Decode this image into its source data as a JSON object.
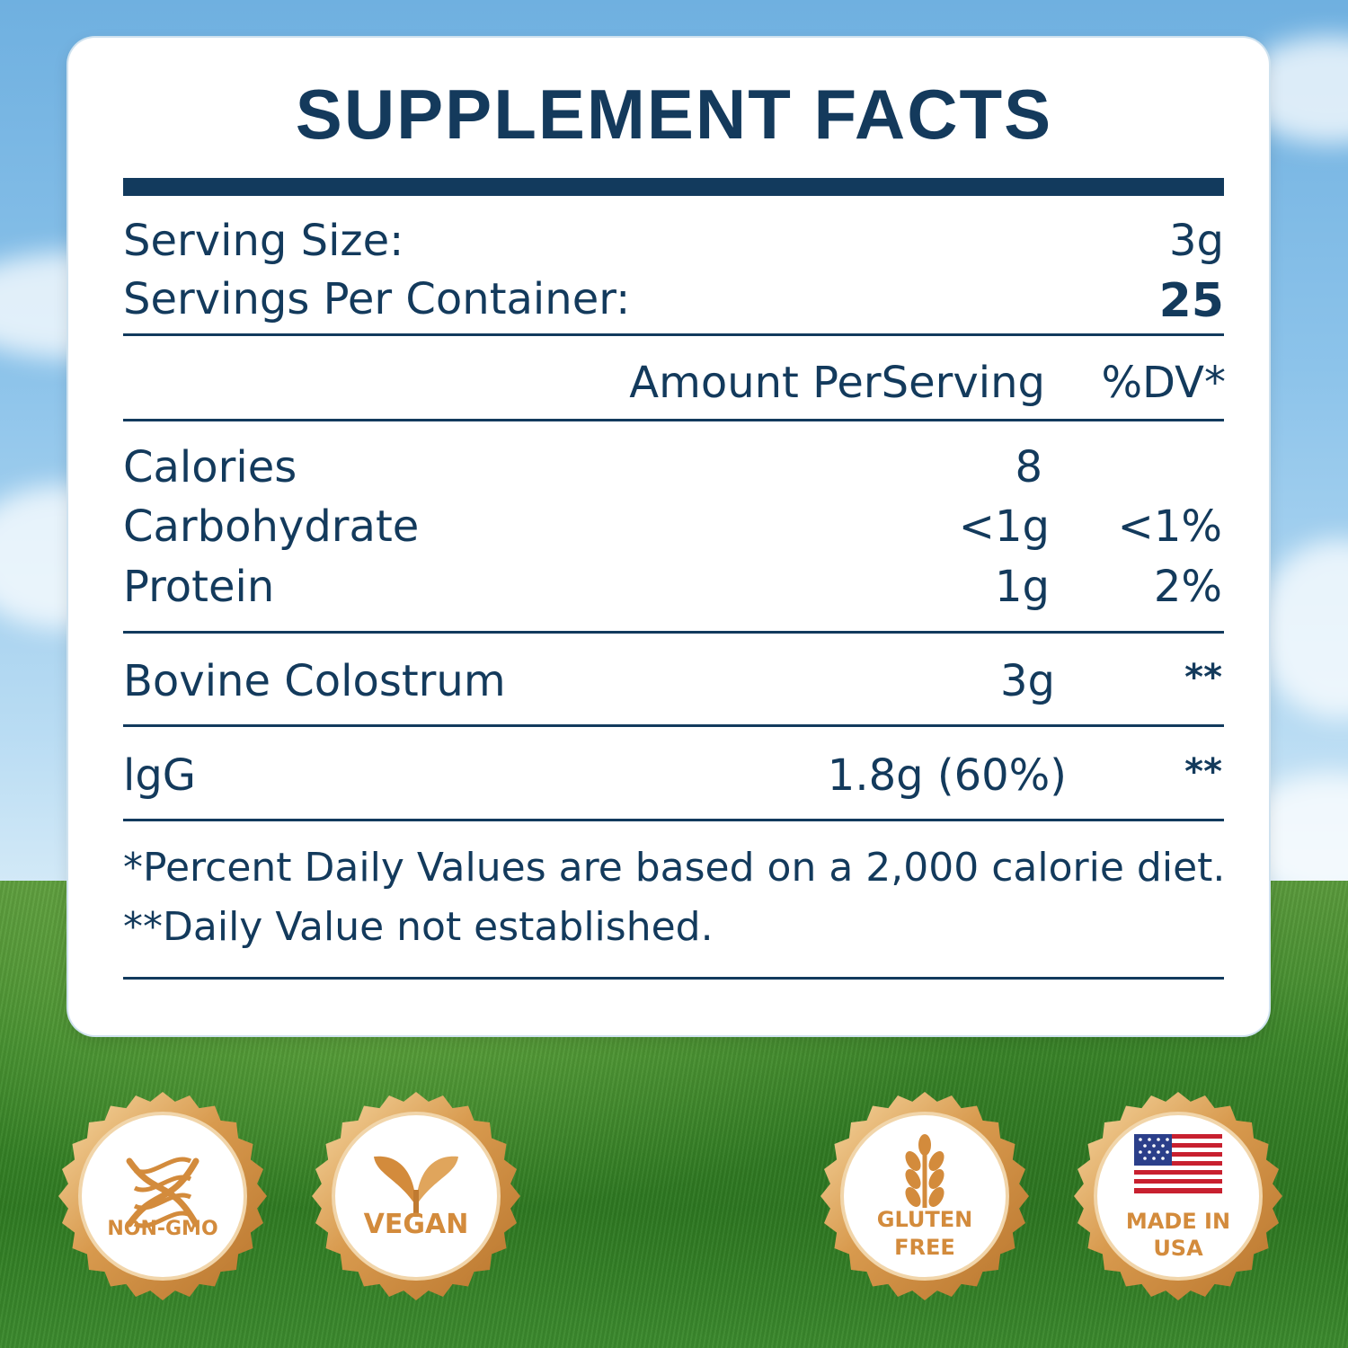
{
  "title": "SUPPLEMENT FACTS",
  "serving": {
    "size_label": "Serving Size:",
    "size_value": "3g",
    "per_container_label": "Servings Per Container:",
    "per_container_value": "25"
  },
  "header": {
    "amount": "Amount PerServing",
    "dv": "%DV*"
  },
  "nutrients": [
    {
      "name": "Calories",
      "amount": "8",
      "dv": ""
    },
    {
      "name": "Carbohydrate",
      "amount": "<1g",
      "dv": "<1%"
    },
    {
      "name": "Protein",
      "amount": "1g",
      "dv": "2%"
    }
  ],
  "ingredients": [
    {
      "name": "Bovine Colostrum",
      "amount": "3g",
      "dv": "**"
    },
    {
      "name": "lgG",
      "amount": "1.8g (60%)",
      "dv": "**"
    }
  ],
  "footnotes": [
    "*Percent Daily Values are based on a 2,000 calorie diet.",
    "**Daily Value not established."
  ],
  "badges": [
    {
      "line1": "NON-GMO",
      "line2": "",
      "icon": "dna-icon"
    },
    {
      "line1": "VEGAN",
      "line2": "",
      "icon": "leaf-sprout-icon"
    },
    {
      "line1": "GLUTEN",
      "line2": "FREE",
      "icon": "wheat-icon"
    },
    {
      "line1": "MADE IN",
      "line2": "USA",
      "icon": "us-flag-icon"
    }
  ],
  "colors": {
    "text": "#133a5c",
    "badge_gold": "#d38b3c",
    "card": "#ffffff"
  }
}
